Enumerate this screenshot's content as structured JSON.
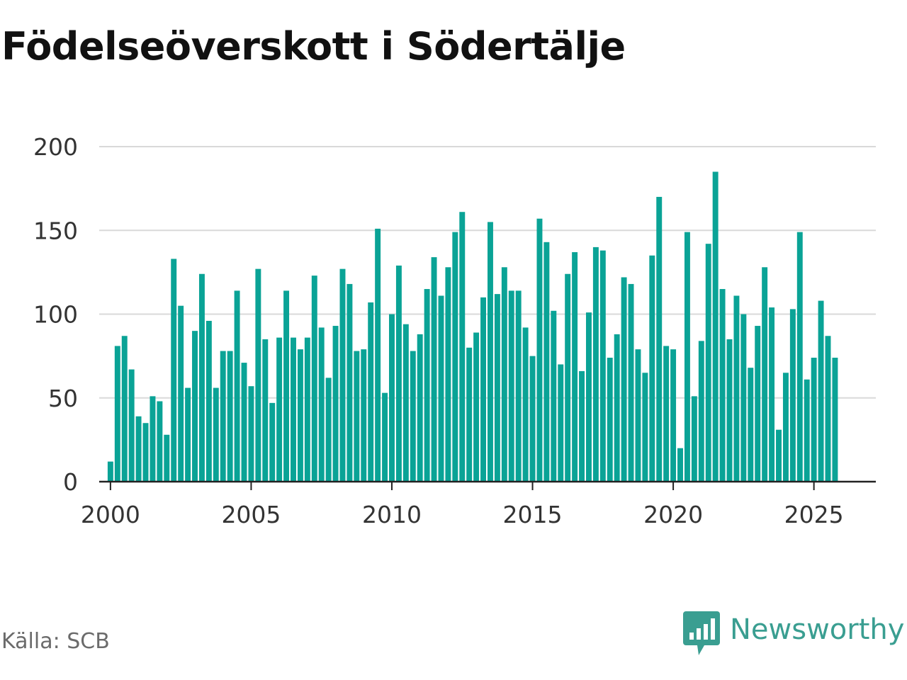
{
  "title": "Födelseöverskott i Södertälje",
  "source": "Källa: SCB",
  "brand": {
    "name": "Newsworthy",
    "logo_icon": "newsworthy-bar-chart-icon",
    "color": "#3a9e91"
  },
  "chart_data": {
    "type": "bar",
    "title": "Födelseöverskott i Södertälje",
    "xlabel": "",
    "ylabel": "",
    "frequency": "monthly-ish (4 bars per year)",
    "start_year": 2000,
    "bars_per_year": 4,
    "xlim": [
      1999.6,
      2027.2
    ],
    "ylim": [
      0,
      200
    ],
    "yticks": [
      0,
      50,
      100,
      150,
      200
    ],
    "xticks": [
      2000,
      2005,
      2010,
      2015,
      2020,
      2025
    ],
    "grid": true,
    "bar_color": "#0aa396",
    "values": [
      12,
      81,
      87,
      67,
      39,
      35,
      51,
      48,
      28,
      133,
      105,
      56,
      90,
      124,
      96,
      56,
      78,
      78,
      114,
      71,
      57,
      127,
      85,
      47,
      86,
      114,
      86,
      79,
      86,
      123,
      92,
      62,
      93,
      127,
      118,
      78,
      79,
      107,
      151,
      53,
      100,
      129,
      94,
      78,
      88,
      115,
      134,
      111,
      128,
      149,
      161,
      80,
      89,
      110,
      155,
      112,
      128,
      114,
      114,
      92,
      75,
      157,
      143,
      102,
      70,
      124,
      137,
      66,
      101,
      140,
      138,
      74,
      88,
      122,
      118,
      79,
      65,
      135,
      170,
      81,
      79,
      20,
      149,
      51,
      84,
      142,
      185,
      115,
      85,
      111,
      100,
      68,
      93,
      128,
      104,
      31,
      65,
      103,
      149,
      61,
      74,
      108,
      87,
      74
    ]
  }
}
